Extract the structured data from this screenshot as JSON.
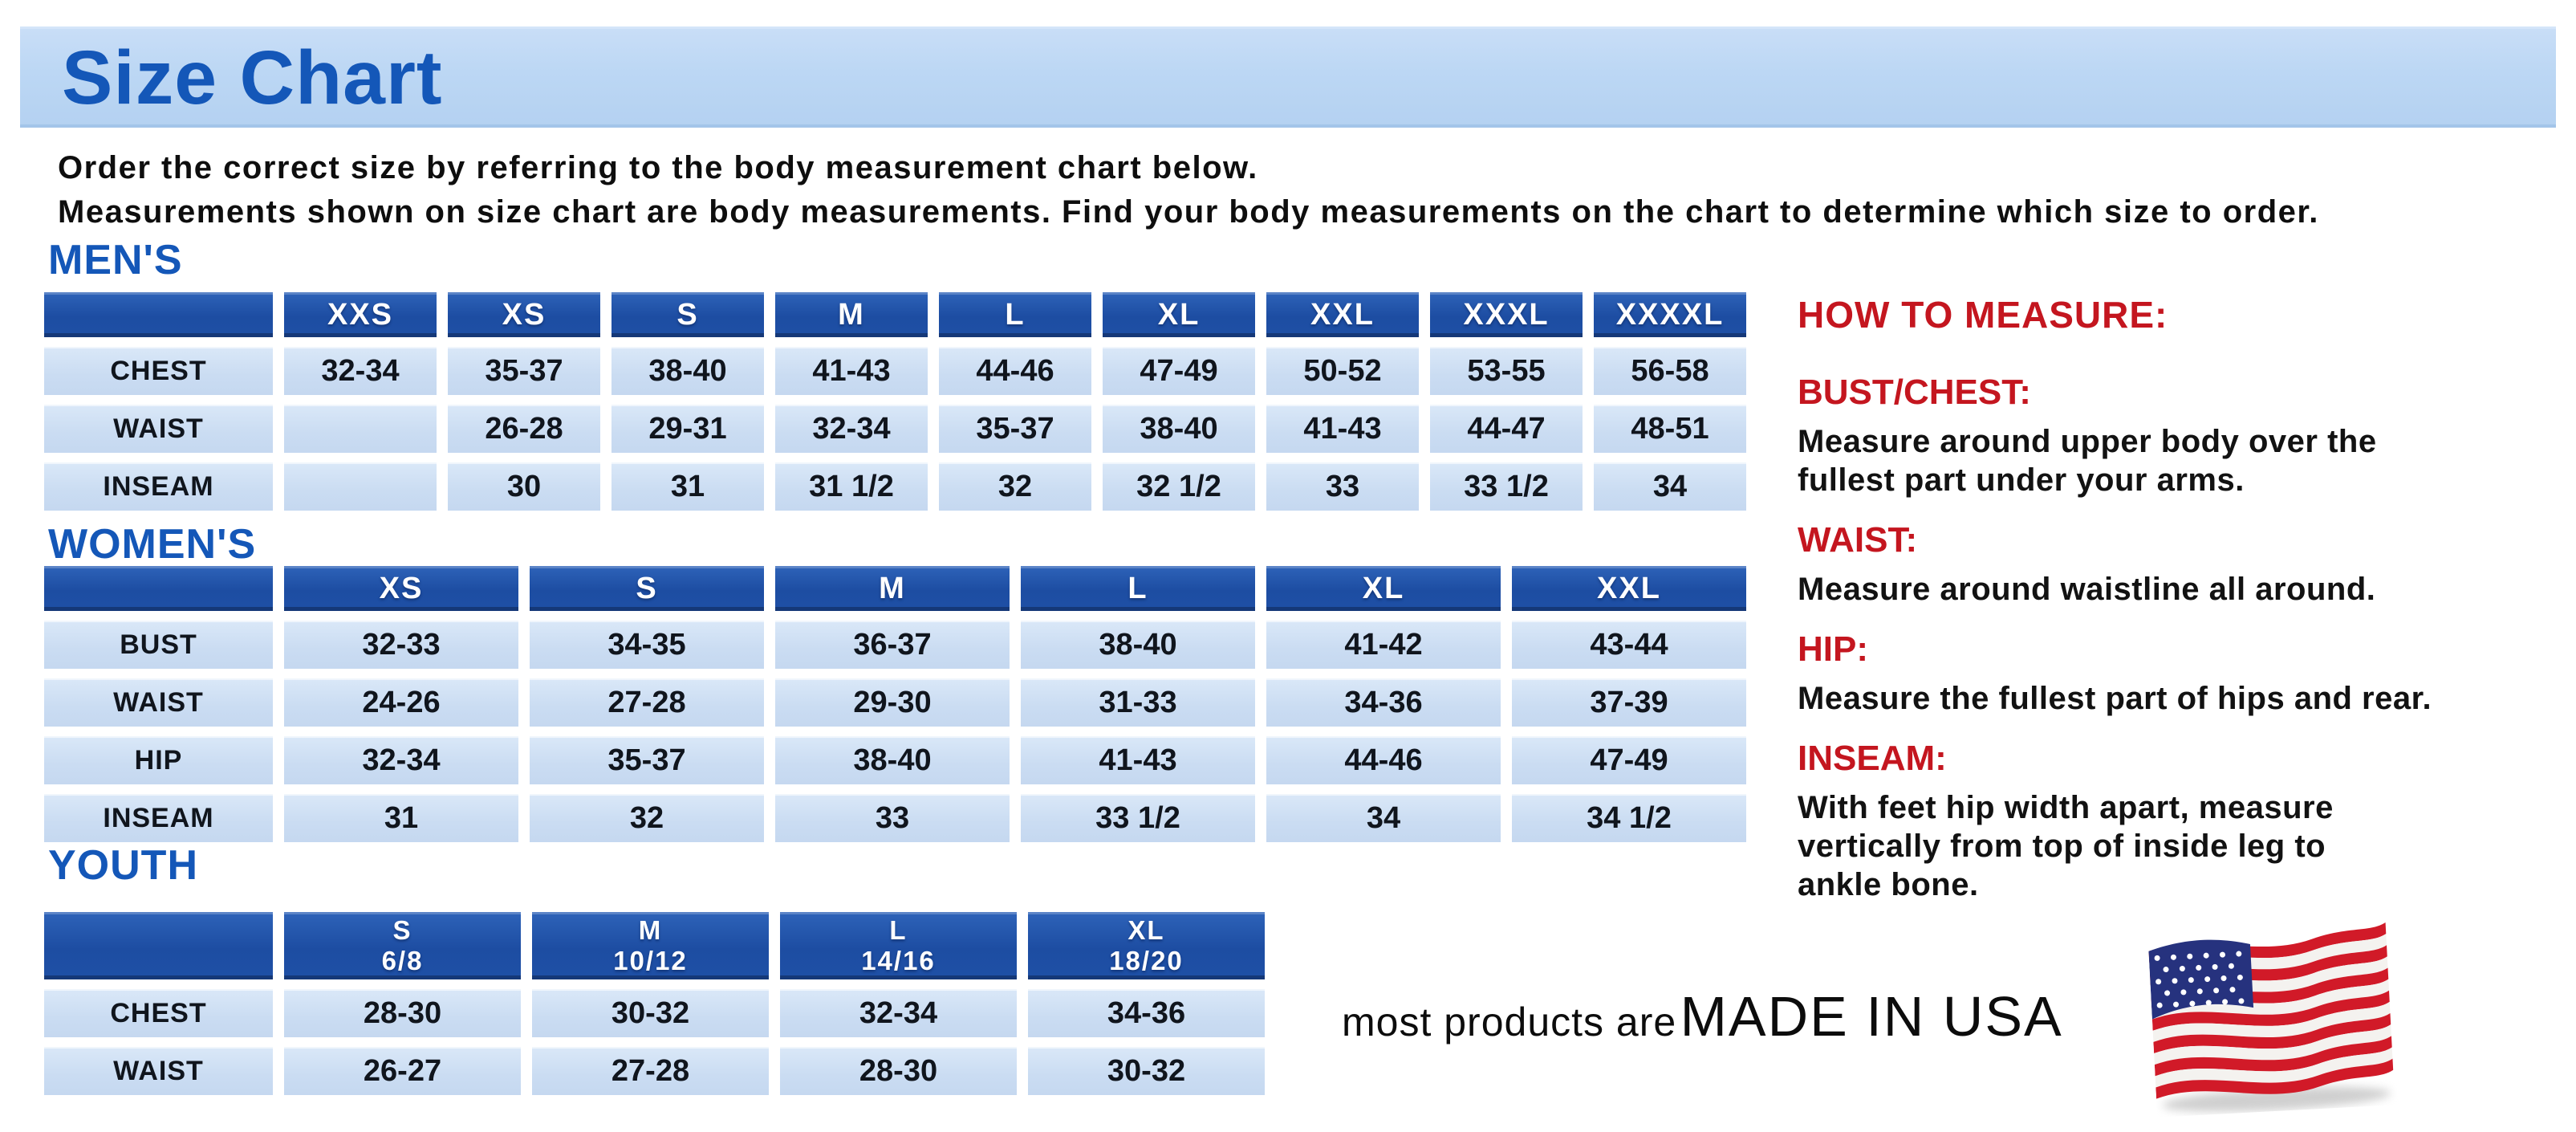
{
  "page": {
    "banner_title": "Size Chart",
    "intro": [
      "Order the correct size by referring to the body measurement chart below.",
      "Measurements shown on size chart are body measurements.  Find your body measurements on the chart to determine which size to order."
    ]
  },
  "tables": {
    "mens": {
      "heading": "MEN'S",
      "columns": [
        "",
        "XXS",
        "XS",
        "S",
        "M",
        "L",
        "XL",
        "XXL",
        "XXXL",
        "XXXXL"
      ],
      "rows": [
        {
          "label": "CHEST",
          "values": [
            "32-34",
            "35-37",
            "38-40",
            "41-43",
            "44-46",
            "47-49",
            "50-52",
            "53-55",
            "56-58"
          ]
        },
        {
          "label": "WAIST",
          "values": [
            "",
            "26-28",
            "29-31",
            "32-34",
            "35-37",
            "38-40",
            "41-43",
            "44-47",
            "48-51"
          ]
        },
        {
          "label": "INSEAM",
          "values": [
            "",
            "30",
            "31",
            "31 1/2",
            "32",
            "32 1/2",
            "33",
            "33 1/2",
            "34"
          ]
        }
      ]
    },
    "womens": {
      "heading": "WOMEN'S",
      "columns": [
        "",
        "XS",
        "S",
        "M",
        "L",
        "XL",
        "XXL"
      ],
      "rows": [
        {
          "label": "BUST",
          "values": [
            "32-33",
            "34-35",
            "36-37",
            "38-40",
            "41-42",
            "43-44"
          ]
        },
        {
          "label": "WAIST",
          "values": [
            "24-26",
            "27-28",
            "29-30",
            "31-33",
            "34-36",
            "37-39"
          ]
        },
        {
          "label": "HIP",
          "values": [
            "32-34",
            "35-37",
            "38-40",
            "41-43",
            "44-46",
            "47-49"
          ]
        },
        {
          "label": "INSEAM",
          "values": [
            "31",
            "32",
            "33",
            "33 1/2",
            "34",
            "34 1/2"
          ]
        }
      ]
    },
    "youth": {
      "heading": "YOUTH",
      "columns": [
        {
          "size": "",
          "range": ""
        },
        {
          "size": "S",
          "range": "6/8"
        },
        {
          "size": "M",
          "range": "10/12"
        },
        {
          "size": "L",
          "range": "14/16"
        },
        {
          "size": "XL",
          "range": "18/20"
        }
      ],
      "rows": [
        {
          "label": "CHEST",
          "values": [
            "28-30",
            "30-32",
            "32-34",
            "34-36"
          ]
        },
        {
          "label": "WAIST",
          "values": [
            "26-27",
            "27-28",
            "28-30",
            "30-32"
          ]
        }
      ]
    }
  },
  "how_to_measure": {
    "heading": "HOW TO MEASURE:",
    "sections": [
      {
        "label": "BUST/CHEST:",
        "lines": [
          "Measure around upper body over the",
          "fullest part under your arms."
        ]
      },
      {
        "label": "WAIST:",
        "lines": [
          "Measure around waistline all around."
        ]
      },
      {
        "label": "HIP:",
        "lines": [
          "Measure the fullest part of hips and rear."
        ]
      },
      {
        "label": "INSEAM:",
        "lines": [
          "With feet hip width apart, measure",
          "vertically from top of inside leg to",
          "ankle bone."
        ]
      }
    ]
  },
  "footer": {
    "prefix": "most products are",
    "emphasis": "MADE IN USA",
    "flag_icon": "us-flag-icon"
  },
  "colors": {
    "title_blue": "#1457b8",
    "table_header_blue": "#1e50a6",
    "cell_light_blue": "#cddff4",
    "banner_blue": "#bcd7f4",
    "accent_red": "#c4161f",
    "flag_red": "#d11a28",
    "flag_blue": "#26327e"
  }
}
